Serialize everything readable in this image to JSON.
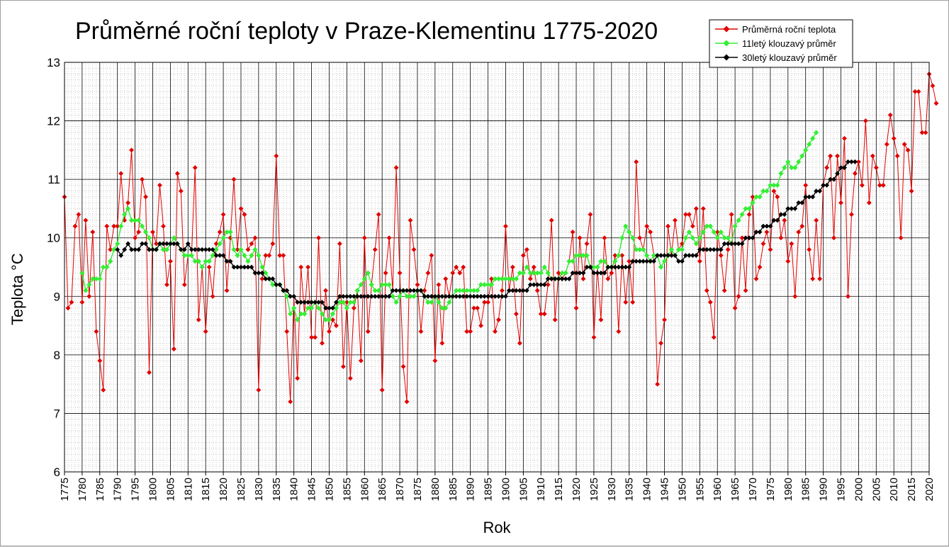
{
  "chart_data": {
    "type": "line",
    "title": "Průměrné roční teploty v Praze-Klementinu 1775-2020",
    "xlabel": "Rok",
    "ylabel": "Teplota  °C",
    "xlim": [
      1775,
      2020
    ],
    "ylim": [
      6,
      13
    ],
    "yticks": [
      "6",
      "7",
      "8",
      "9",
      "10",
      "11",
      "12",
      "13"
    ],
    "xtick_step": 5,
    "grid": true,
    "minor_grid": "dotted",
    "legend_position": "top-right",
    "series": [
      {
        "name": "Průměrná roční teplota",
        "color": "#e00000",
        "marker": "diamond",
        "x_start": 1775,
        "values": [
          10.7,
          8.8,
          8.9,
          10.2,
          10.4,
          8.9,
          10.3,
          9.0,
          10.1,
          8.4,
          7.9,
          7.4,
          10.2,
          9.8,
          10.2,
          10.2,
          11.1,
          10.3,
          10.6,
          11.5,
          10.0,
          10.1,
          11.0,
          10.7,
          7.7,
          10.1,
          9.9,
          10.9,
          10.2,
          9.2,
          9.6,
          8.1,
          11.1,
          10.8,
          9.2,
          9.7,
          9.7,
          11.2,
          8.6,
          9.5,
          8.4,
          9.5,
          9.0,
          9.9,
          10.1,
          10.4,
          9.1,
          10.0,
          11.0,
          9.8,
          10.5,
          10.4,
          9.8,
          9.9,
          10.0,
          7.4,
          9.3,
          9.7,
          9.7,
          9.9,
          11.4,
          9.7,
          9.7,
          8.4,
          7.2,
          9.0,
          7.6,
          9.5,
          8.7,
          9.5,
          8.3,
          8.3,
          10.0,
          8.2,
          9.1,
          8.4,
          8.6,
          8.5,
          9.9,
          7.8,
          8.9,
          7.6,
          8.8,
          9.1,
          7.9,
          10.0,
          8.4,
          9.2,
          9.8,
          10.4,
          7.4,
          9.4,
          10.0,
          9.1,
          11.2,
          9.4,
          7.8,
          7.2,
          10.3,
          9.8,
          9.2,
          8.4,
          9.1,
          9.4,
          9.7,
          7.9,
          9.2,
          8.2,
          9.3,
          9.0,
          9.4,
          9.5,
          9.4,
          9.5,
          8.4,
          8.4,
          8.8,
          8.8,
          8.5,
          8.9,
          8.9,
          9.3,
          8.4,
          8.6,
          9.1,
          10.2,
          9.1,
          9.5,
          8.7,
          8.2,
          9.7,
          9.8,
          9.3,
          9.5,
          9.1,
          8.7,
          8.7,
          9.2,
          10.3,
          8.6,
          9.4,
          9.3,
          9.4,
          9.6,
          10.1,
          8.8,
          10.0,
          9.3,
          9.9,
          10.4,
          8.3,
          9.5,
          8.6,
          10.0,
          9.3,
          9.4,
          9.7,
          8.4,
          9.7,
          8.9,
          9.6,
          8.9,
          11.3,
          10.0,
          9.8,
          10.2,
          10.1,
          9.7,
          7.5,
          8.2,
          8.6,
          10.2,
          9.7,
          10.3,
          9.8,
          9.9,
          10.4,
          10.4,
          10.2,
          10.5,
          9.6,
          10.5,
          9.1,
          8.9,
          8.3,
          10.1,
          9.7,
          9.1,
          9.8,
          10.4,
          8.8,
          9.0,
          10.0,
          9.1,
          10.4,
          10.7,
          9.3,
          9.5,
          9.9,
          10.1,
          9.8,
          10.8,
          10.7,
          10.0,
          10.3,
          9.6,
          9.9,
          9.0,
          10.1,
          10.2,
          10.9,
          9.8,
          9.3,
          10.3,
          9.3,
          10.9,
          11.2,
          11.4,
          10.0,
          11.4,
          10.6,
          11.7,
          9.0,
          10.4,
          11.1,
          11.3,
          10.9,
          12.0,
          10.6,
          11.4,
          11.2,
          10.9,
          10.9,
          11.6,
          12.1,
          11.7,
          11.4,
          10.0,
          11.6,
          11.5,
          10.8,
          12.5,
          12.5,
          11.8,
          11.8,
          12.8,
          12.6,
          12.3
        ]
      },
      {
        "name": "11letý klouzavý průměr",
        "color": "#33ee33",
        "marker": "diamond",
        "x_start": 1780,
        "values": [
          9.4,
          9.1,
          9.2,
          9.3,
          9.3,
          9.3,
          9.5,
          9.5,
          9.6,
          9.8,
          9.9,
          10.2,
          10.4,
          10.5,
          10.3,
          10.3,
          10.3,
          10.2,
          10.1,
          10.0,
          9.8,
          9.8,
          9.9,
          9.8,
          9.8,
          9.9,
          10.0,
          9.9,
          9.8,
          9.7,
          9.7,
          9.7,
          9.6,
          9.6,
          9.5,
          9.6,
          9.6,
          9.7,
          9.8,
          9.9,
          10.0,
          10.1,
          10.1,
          9.8,
          9.7,
          9.8,
          9.7,
          9.6,
          9.7,
          9.8,
          9.7,
          9.5,
          9.4,
          9.3,
          9.2,
          9.2,
          9.2,
          9.1,
          9.0,
          8.7,
          8.8,
          8.6,
          8.7,
          8.7,
          8.8,
          8.8,
          8.9,
          8.8,
          8.7,
          8.6,
          8.6,
          8.7,
          8.8,
          8.9,
          8.9,
          8.8,
          8.9,
          8.9,
          9.1,
          9.2,
          9.3,
          9.4,
          9.2,
          9.1,
          9.1,
          9.2,
          9.2,
          9.2,
          9.0,
          8.9,
          9.0,
          9.1,
          9.0,
          9.0,
          9.0,
          9.1,
          9.1,
          9.0,
          8.9,
          8.9,
          9.0,
          8.9,
          8.8,
          8.8,
          8.9,
          9.0,
          9.1,
          9.1,
          9.1,
          9.1,
          9.1,
          9.1,
          9.1,
          9.2,
          9.2,
          9.2,
          9.2,
          9.3,
          9.3,
          9.3,
          9.3,
          9.3,
          9.3,
          9.3,
          9.4,
          9.4,
          9.5,
          9.4,
          9.4,
          9.4,
          9.4,
          9.5,
          9.4,
          9.3,
          9.3,
          9.3,
          9.4,
          9.4,
          9.6,
          9.6,
          9.7,
          9.7,
          9.7,
          9.7,
          9.5,
          9.5,
          9.5,
          9.6,
          9.6,
          9.5,
          9.5,
          9.6,
          9.7,
          10.0,
          10.2,
          10.1,
          10.0,
          9.8,
          9.8,
          9.8,
          9.7,
          9.6,
          9.7,
          9.7,
          9.5,
          9.6,
          9.7,
          9.8,
          9.7,
          9.8,
          9.8,
          10.0,
          10.1,
          10.0,
          9.9,
          10.0,
          10.1,
          10.2,
          10.2,
          10.1,
          10.0,
          10.1,
          10.0,
          10.0,
          9.9,
          10.2,
          10.3,
          10.4,
          10.5,
          10.5,
          10.6,
          10.7,
          10.7,
          10.8,
          10.8,
          10.9,
          10.9,
          10.9,
          11.1,
          11.2,
          11.3,
          11.2,
          11.2,
          11.3,
          11.4,
          11.5,
          11.6,
          11.7,
          11.8
        ]
      },
      {
        "name": "30letý klouzavý průměr",
        "color": "#000000",
        "marker": "diamond",
        "x_start": 1790,
        "values": [
          9.8,
          9.7,
          9.8,
          9.9,
          9.8,
          9.8,
          9.8,
          9.9,
          9.9,
          9.8,
          9.8,
          9.8,
          9.9,
          9.9,
          9.9,
          9.9,
          9.9,
          9.9,
          9.8,
          9.8,
          9.9,
          9.8,
          9.8,
          9.8,
          9.8,
          9.8,
          9.8,
          9.8,
          9.7,
          9.7,
          9.7,
          9.6,
          9.6,
          9.5,
          9.5,
          9.5,
          9.5,
          9.5,
          9.5,
          9.4,
          9.4,
          9.4,
          9.3,
          9.3,
          9.3,
          9.2,
          9.2,
          9.1,
          9.1,
          9.0,
          9.0,
          8.9,
          8.9,
          8.9,
          8.9,
          8.9,
          8.9,
          8.9,
          8.9,
          8.8,
          8.8,
          8.8,
          8.9,
          9.0,
          9.0,
          9.0,
          9.0,
          9.0,
          9.0,
          9.0,
          9.0,
          9.0,
          9.0,
          9.0,
          9.0,
          9.0,
          9.0,
          9.0,
          9.1,
          9.1,
          9.1,
          9.1,
          9.1,
          9.1,
          9.1,
          9.1,
          9.1,
          9.0,
          9.0,
          9.0,
          9.0,
          9.0,
          9.0,
          9.0,
          9.0,
          9.0,
          9.0,
          9.0,
          9.0,
          9.0,
          9.0,
          9.0,
          9.0,
          9.0,
          9.0,
          9.0,
          9.0,
          9.0,
          9.0,
          9.0,
          9.0,
          9.1,
          9.1,
          9.1,
          9.1,
          9.1,
          9.1,
          9.2,
          9.2,
          9.2,
          9.2,
          9.2,
          9.3,
          9.3,
          9.3,
          9.3,
          9.3,
          9.3,
          9.3,
          9.4,
          9.4,
          9.4,
          9.4,
          9.5,
          9.5,
          9.4,
          9.4,
          9.4,
          9.4,
          9.5,
          9.5,
          9.5,
          9.5,
          9.5,
          9.5,
          9.5,
          9.6,
          9.6,
          9.6,
          9.6,
          9.6,
          9.6,
          9.6,
          9.7,
          9.7,
          9.7,
          9.7,
          9.7,
          9.7,
          9.6,
          9.6,
          9.7,
          9.7,
          9.7,
          9.7,
          9.8,
          9.8,
          9.8,
          9.8,
          9.8,
          9.8,
          9.8,
          9.9,
          9.9,
          9.9,
          9.9,
          9.9,
          9.9,
          10.0,
          10.0,
          10.0,
          10.1,
          10.1,
          10.2,
          10.2,
          10.2,
          10.3,
          10.3,
          10.4,
          10.4,
          10.5,
          10.5,
          10.5,
          10.6,
          10.6,
          10.7,
          10.7,
          10.7,
          10.8,
          10.8,
          10.9,
          10.9,
          11.0,
          11.0,
          11.1,
          11.2,
          11.2,
          11.3,
          11.3,
          11.3
        ]
      }
    ]
  },
  "colors": {
    "background": "#ffffff",
    "grid_major": "#000000",
    "grid_minor": "#b0b0b0"
  }
}
